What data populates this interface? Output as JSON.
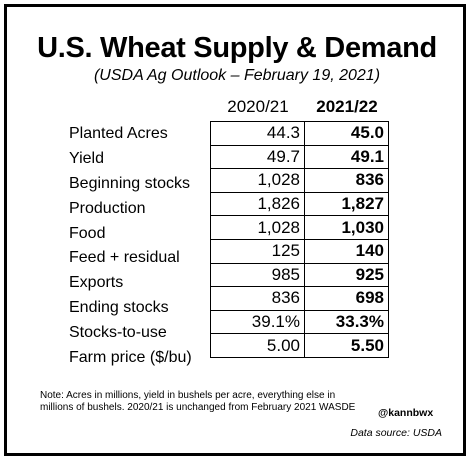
{
  "chart_data": {
    "type": "table",
    "title": "U.S. Wheat Supply & Demand",
    "subtitle": "(USDA Ag Outlook – February 19, 2021)",
    "columns": [
      "2020/21",
      "2021/22"
    ],
    "rows": [
      {
        "label": "Planted Acres",
        "values": [
          "44.3",
          "45.0"
        ]
      },
      {
        "label": "Yield",
        "values": [
          "49.7",
          "49.1"
        ]
      },
      {
        "label": "Beginning stocks",
        "values": [
          "1,028",
          "836"
        ]
      },
      {
        "label": "Production",
        "values": [
          "1,826",
          "1,827"
        ]
      },
      {
        "label": "Food",
        "values": [
          "1,028",
          "1,030"
        ]
      },
      {
        "label": "Feed + residual",
        "values": [
          "125",
          "140"
        ]
      },
      {
        "label": "Exports",
        "values": [
          "985",
          "925"
        ]
      },
      {
        "label": "Ending stocks",
        "values": [
          "836",
          "698"
        ]
      },
      {
        "label": "Stocks-to-use",
        "values": [
          "39.1%",
          "33.3%"
        ]
      },
      {
        "label": "Farm price ($/bu)",
        "values": [
          "5.00",
          "5.50"
        ]
      }
    ],
    "note": "Note: Acres in millions, yield in bushels per acre, everything else in millions of bushels. 2020/21 is unchanged from February 2021 WASDE",
    "handle": "@kannbwx",
    "source": "Data source: USDA"
  }
}
